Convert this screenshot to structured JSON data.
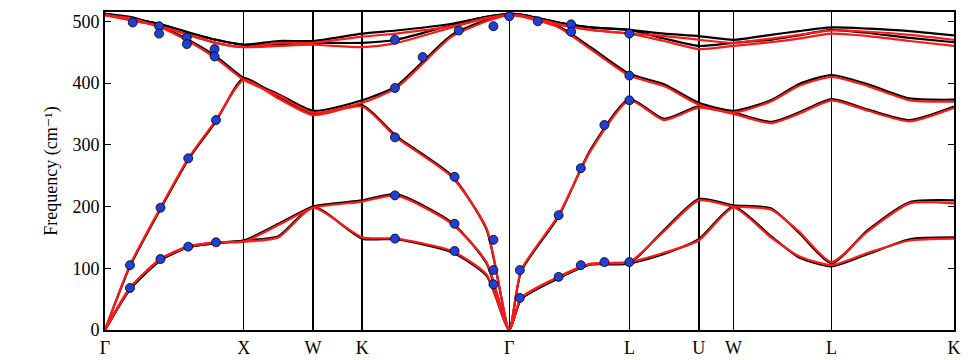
{
  "chart_data": {
    "type": "line",
    "y_label": "Frequency (cm⁻¹)",
    "xlim": [
      0,
      6.12
    ],
    "xticks": [
      {
        "value": 0,
        "label": "Γ"
      },
      {
        "value": 1.0,
        "label": "X"
      },
      {
        "value": 1.5,
        "label": "W"
      },
      {
        "value": 1.854,
        "label": "K"
      },
      {
        "value": 2.914,
        "label": "Γ"
      },
      {
        "value": 3.78,
        "label": "L"
      },
      {
        "value": 4.28,
        "label": "U"
      },
      {
        "value": 4.53,
        "label": "W"
      },
      {
        "value": 5.237,
        "label": "L"
      },
      {
        "value": 6.12,
        "label": "K"
      }
    ],
    "ylim": [
      0,
      515
    ],
    "yticks": [
      0,
      100,
      200,
      300,
      400,
      500
    ],
    "grid": true,
    "series": [
      {
        "color": "#000000",
        "line_style": "solid",
        "x": [
          0,
          0.18,
          0.4,
          0.6,
          0.8,
          1.0,
          1.25,
          1.5,
          1.854,
          2.1,
          2.5,
          2.75,
          2.914,
          3.0,
          3.27,
          3.5,
          3.78,
          4.03,
          4.28,
          4.53,
          4.8,
          5.0,
          5.237,
          5.5,
          5.8,
          6.12
        ],
        "values": [
          0,
          66,
          113,
          134,
          141,
          145,
          152,
          200,
          148,
          147,
          126,
          88,
          0,
          50,
          84,
          106,
          108,
          123,
          147,
          200,
          152,
          118,
          103,
          123,
          147,
          150
        ]
      },
      {
        "color": "#000000",
        "line_style": "solid",
        "x": [
          0,
          0.18,
          0.4,
          0.6,
          0.8,
          1.0,
          1.25,
          1.5,
          1.854,
          2.1,
          2.5,
          2.75,
          2.914,
          3.0,
          3.27,
          3.5,
          3.78,
          4.03,
          4.28,
          4.53,
          4.8,
          5.0,
          5.237,
          5.5,
          5.8,
          6.12
        ],
        "values": [
          0,
          66,
          113,
          134,
          141,
          145,
          172,
          200,
          210,
          220,
          174,
          108,
          0,
          50,
          84,
          106,
          108,
          162,
          212,
          202,
          197,
          158,
          108,
          162,
          207,
          210
        ]
      },
      {
        "color": "#000000",
        "line_style": "solid",
        "x": [
          0,
          0.18,
          0.4,
          0.6,
          0.8,
          1.0,
          1.25,
          1.5,
          1.854,
          2.1,
          2.5,
          2.75,
          2.914,
          3.0,
          3.27,
          3.5,
          3.78,
          4.03,
          4.28,
          4.53,
          4.8,
          5.0,
          5.237,
          5.5,
          5.8,
          6.12
        ],
        "values": [
          0,
          103,
          196,
          276,
          338,
          408,
          377,
          350,
          364,
          314,
          250,
          163,
          0,
          95,
          184,
          292,
          374,
          342,
          362,
          352,
          337,
          352,
          374,
          357,
          340,
          362
        ]
      },
      {
        "color": "#000000",
        "line_style": "solid",
        "x": [
          0,
          0.18,
          0.4,
          0.6,
          0.8,
          1.0,
          1.25,
          1.5,
          1.854,
          2.1,
          2.5,
          2.75,
          2.914,
          3.0,
          3.27,
          3.5,
          3.78,
          4.03,
          4.28,
          4.53,
          4.8,
          5.0,
          5.237,
          5.5,
          5.8,
          6.12
        ],
        "values": [
          512,
          507,
          492,
          470,
          443,
          408,
          382,
          355,
          372,
          395,
          478,
          502,
          512,
          510,
          492,
          458,
          415,
          398,
          368,
          355,
          372,
          398,
          413,
          398,
          375,
          373
        ]
      },
      {
        "color": "#000000",
        "line_style": "solid",
        "x": [
          0,
          0.18,
          0.4,
          0.6,
          0.8,
          1.0,
          1.25,
          1.5,
          1.854,
          2.1,
          2.5,
          2.75,
          2.914,
          3.0,
          3.27,
          3.5,
          3.78,
          4.03,
          4.28,
          4.53,
          4.8,
          5.0,
          5.237,
          5.5,
          5.8,
          6.12
        ],
        "values": [
          512,
          505,
          495,
          482,
          470,
          462,
          463,
          465,
          465,
          470,
          494,
          507,
          512,
          511,
          498,
          490,
          486,
          480,
          476,
          470,
          478,
          484,
          490,
          488,
          484,
          477
        ]
      },
      {
        "color": "#000000",
        "line_style": "solid",
        "x": [
          0,
          0.18,
          0.4,
          0.6,
          0.8,
          1.0,
          1.25,
          1.5,
          1.854,
          2.1,
          2.5,
          2.75,
          2.914,
          3.0,
          3.27,
          3.5,
          3.78,
          4.03,
          4.28,
          4.53,
          4.8,
          5.0,
          5.237,
          5.5,
          5.8,
          6.12
        ],
        "values": [
          512,
          505,
          495,
          482,
          470,
          462,
          468,
          468,
          480,
          485,
          496,
          507,
          512,
          511,
          498,
          490,
          486,
          472,
          460,
          465,
          470,
          477,
          486,
          481,
          473,
          466
        ]
      },
      {
        "color": "#ff1a1a",
        "line_style": "solid",
        "x": [
          0,
          0.18,
          0.4,
          0.6,
          0.8,
          1.0,
          1.25,
          1.5,
          1.854,
          2.1,
          2.5,
          2.75,
          2.914,
          3.0,
          3.27,
          3.5,
          3.78,
          4.03,
          4.28,
          4.53,
          4.8,
          5.0,
          5.237,
          5.5,
          5.8,
          6.12
        ],
        "values": [
          0,
          68,
          115,
          135,
          142,
          143,
          150,
          198,
          150,
          148,
          128,
          90,
          0,
          52,
          86,
          107,
          110,
          125,
          145,
          198,
          150,
          120,
          105,
          125,
          145,
          148
        ]
      },
      {
        "color": "#ff1a1a",
        "line_style": "solid",
        "x": [
          0,
          0.18,
          0.4,
          0.6,
          0.8,
          1.0,
          1.25,
          1.5,
          1.854,
          2.1,
          2.5,
          2.75,
          2.914,
          3.0,
          3.27,
          3.5,
          3.78,
          4.03,
          4.28,
          4.53,
          4.8,
          5.0,
          5.237,
          5.5,
          5.8,
          6.12
        ],
        "values": [
          0,
          68,
          115,
          135,
          142,
          143,
          170,
          198,
          208,
          218,
          172,
          110,
          0,
          52,
          86,
          107,
          110,
          160,
          210,
          200,
          195,
          160,
          110,
          160,
          205,
          205
        ]
      },
      {
        "color": "#ff1a1a",
        "line_style": "solid",
        "x": [
          0,
          0.18,
          0.4,
          0.6,
          0.8,
          1.0,
          1.25,
          1.5,
          1.854,
          2.1,
          2.5,
          2.75,
          2.914,
          3.0,
          3.27,
          3.5,
          3.78,
          4.03,
          4.28,
          4.53,
          4.8,
          5.0,
          5.237,
          5.5,
          5.8,
          6.12
        ],
        "values": [
          0,
          105,
          198,
          278,
          340,
          405,
          375,
          348,
          362,
          312,
          248,
          165,
          0,
          97,
          186,
          290,
          372,
          340,
          360,
          350,
          335,
          350,
          372,
          355,
          338,
          360
        ]
      },
      {
        "color": "#ff1a1a",
        "line_style": "solid",
        "x": [
          0,
          0.18,
          0.4,
          0.6,
          0.8,
          1.0,
          1.25,
          1.5,
          1.854,
          2.1,
          2.5,
          2.75,
          2.914,
          3.0,
          3.27,
          3.5,
          3.78,
          4.03,
          4.28,
          4.53,
          4.8,
          5.0,
          5.237,
          5.5,
          5.8,
          6.12
        ],
        "values": [
          510,
          505,
          490,
          468,
          440,
          405,
          380,
          352,
          368,
          392,
          475,
          500,
          510,
          508,
          490,
          455,
          412,
          395,
          365,
          352,
          370,
          395,
          410,
          395,
          372,
          370
        ]
      },
      {
        "color": "#ff1a1a",
        "line_style": "solid",
        "x": [
          0,
          0.18,
          0.4,
          0.6,
          0.8,
          1.0,
          1.25,
          1.5,
          1.854,
          2.1,
          2.5,
          2.75,
          2.914,
          3.0,
          3.27,
          3.5,
          3.78,
          4.03,
          4.28,
          4.53,
          4.8,
          5.0,
          5.237,
          5.5,
          5.8,
          6.12
        ],
        "values": [
          510,
          502,
          492,
          478,
          465,
          458,
          460,
          462,
          458,
          465,
          490,
          505,
          510,
          509,
          495,
          486,
          480,
          476,
          470,
          465,
          472,
          478,
          485,
          483,
          478,
          470
        ]
      },
      {
        "color": "#ff1a1a",
        "line_style": "solid",
        "x": [
          0,
          0.18,
          0.4,
          0.6,
          0.8,
          1.0,
          1.25,
          1.5,
          1.854,
          2.1,
          2.5,
          2.75,
          2.914,
          3.0,
          3.27,
          3.5,
          3.78,
          4.03,
          4.28,
          4.53,
          4.8,
          5.0,
          5.237,
          5.5,
          5.8,
          6.12
        ],
        "values": [
          510,
          502,
          492,
          478,
          465,
          458,
          465,
          465,
          475,
          480,
          492,
          505,
          510,
          509,
          495,
          486,
          480,
          468,
          455,
          460,
          466,
          472,
          480,
          476,
          468,
          460
        ]
      },
      {
        "type": "scatter",
        "marker": "circle",
        "color": "#1f3fd6",
        "x": [
          0.18,
          0.18,
          0.4,
          0.4,
          0.6,
          0.6,
          0.8,
          0.8,
          0.2,
          0.39,
          0.39,
          0.59,
          0.59,
          0.79,
          0.79,
          2.09,
          2.09,
          2.52,
          2.52,
          2.8,
          2.8,
          2.09,
          2.52,
          2.8,
          2.09,
          2.29,
          2.55,
          2.8,
          2.09,
          2.914,
          2.99,
          2.99,
          3.27,
          3.27,
          3.43,
          3.43,
          3.6,
          3.6,
          3.78,
          3.78,
          3.78,
          3.78,
          3.12,
          3.36,
          3.36
        ],
        "values": [
          68,
          105,
          115,
          198,
          135,
          278,
          142,
          340,
          498,
          492,
          480,
          474,
          463,
          455,
          443,
          148,
          218,
          128,
          172,
          74,
          97,
          312,
          248,
          146,
          392,
          442,
          485,
          492,
          470,
          508,
          52,
          97,
          86,
          186,
          105,
          262,
          110,
          332,
          110,
          372,
          412,
          480,
          500,
          495,
          483
        ]
      }
    ]
  }
}
